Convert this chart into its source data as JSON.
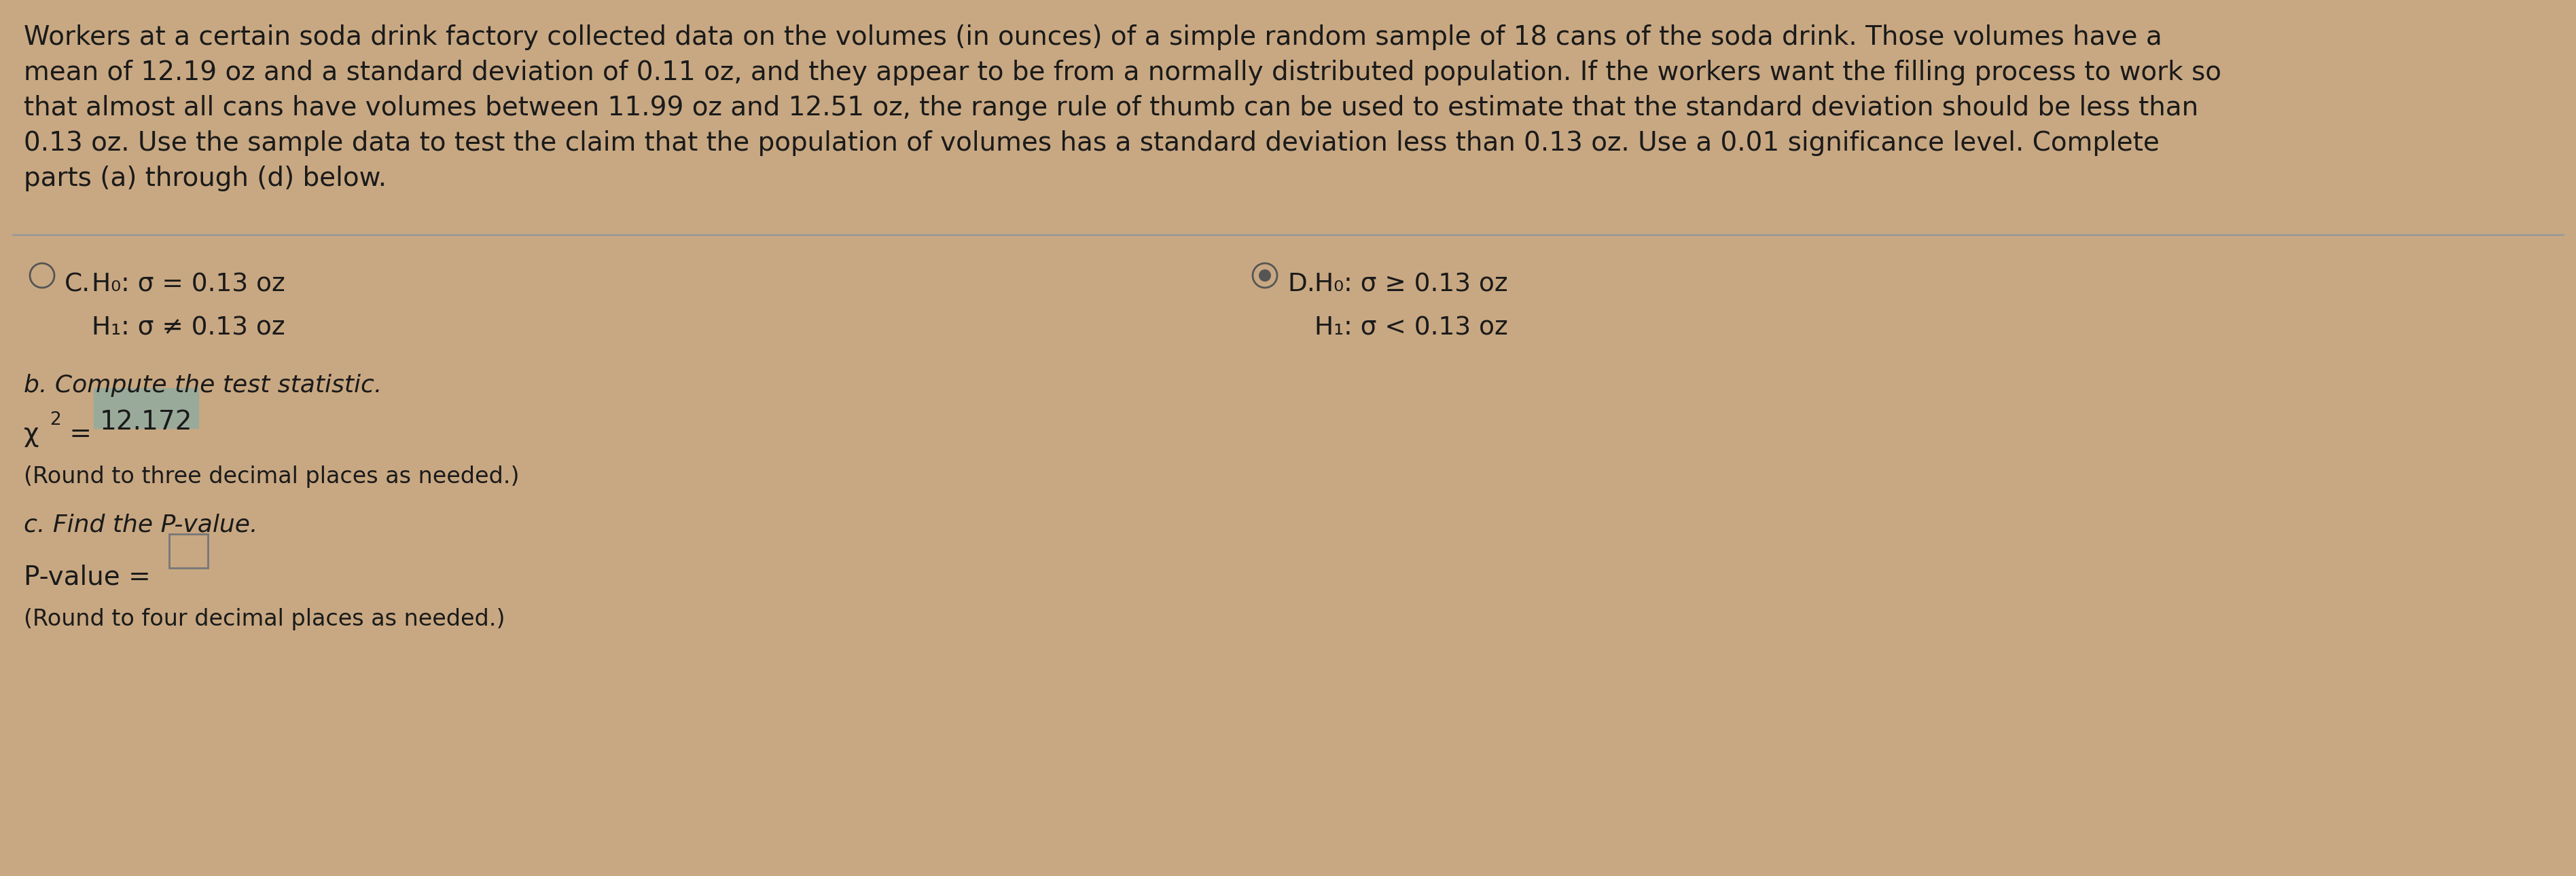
{
  "background_color": "#c8a882",
  "content_bg": "#e8e0d0",
  "text_color": "#1a1a1a",
  "paragraph_lines": [
    "Workers at a certain soda drink factory collected data on the volumes (in ounces) of a simple random sample of 18 cans of the soda drink. Those volumes have a",
    "mean of 12.19 oz and a standard deviation of 0.11 oz, and they appear to be from a normally distributed population. If the workers want the filling process to work so",
    "that almost all cans have volumes between 11.99 oz and 12.51 oz, the range rule of thumb can be used to estimate that the standard deviation should be less than",
    "0.13 oz. Use the sample data to test the claim that the population of volumes has a standard deviation less than 0.13 oz. Use a 0.01 significance level. Complete",
    "parts (a) through (d) below."
  ],
  "option_C_H0": "H₀: σ = 0.13 oz",
  "option_C_H1": "H₁: σ ≠ 0.13 oz",
  "option_D_H0": "H₀: σ ≥ 0.13 oz",
  "option_D_H1": "H₁: σ < 0.13 oz",
  "part_b_label": "b. Compute the test statistic.",
  "chi2_prefix": "χ",
  "chi2_superscript": "2",
  "chi2_equals": " = ",
  "chi2_value": "12.172",
  "chi2_value_bg": "#9aaa9a",
  "chi2_note": "(Round to three decimal places as needed.)",
  "part_c_label": "c. Find the P-value.",
  "pvalue_label": "P-value =",
  "pvalue_note": "(Round to four decimal places as needed.)",
  "separator_color": "#999999",
  "font_size_para": 28,
  "font_size_options": 27,
  "font_size_labels": 26,
  "font_size_notes": 24
}
